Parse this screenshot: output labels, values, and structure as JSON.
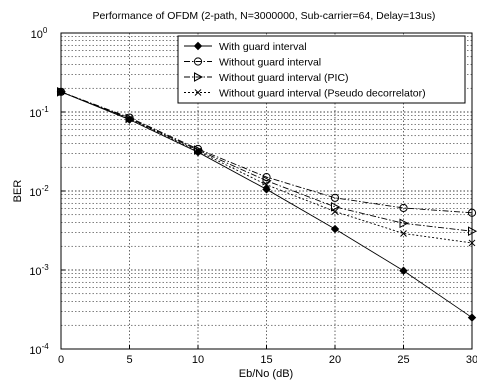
{
  "chart_data": {
    "type": "line",
    "title": "Performance of OFDM (2-path, N=3000000, Sub-carrier=64, Delay=13us)",
    "xlabel": "Eb/No (dB)",
    "ylabel": "BER",
    "x": [
      0,
      5,
      10,
      15,
      20,
      25,
      30
    ],
    "xlim": [
      0,
      30
    ],
    "ylim": [
      0.0001,
      1
    ],
    "yscale": "log",
    "grid": true,
    "legend_position": "top-right",
    "x_tick_labels": [
      "0",
      "5",
      "10",
      "15",
      "20",
      "25",
      "30"
    ],
    "y_tick_labels": [
      {
        "base": "10",
        "exp": "0"
      },
      {
        "base": "10",
        "exp": "-1"
      },
      {
        "base": "10",
        "exp": "-2"
      },
      {
        "base": "10",
        "exp": "-3"
      },
      {
        "base": "10",
        "exp": "-4"
      }
    ],
    "series": [
      {
        "name": "With guard interval",
        "marker": "diamond",
        "dash": "solid",
        "values": [
          0.18,
          0.08,
          0.031,
          0.0105,
          0.0033,
          0.00098,
          0.00025
        ]
      },
      {
        "name": "Without guard interval",
        "marker": "circle",
        "dash": "dashdot",
        "values": [
          0.18,
          0.085,
          0.034,
          0.015,
          0.0082,
          0.0061,
          0.0053
        ]
      },
      {
        "name": "Without guard interval (PIC)",
        "marker": "triangle-right",
        "dash": "dashdot",
        "values": [
          0.18,
          0.083,
          0.033,
          0.0135,
          0.0063,
          0.0039,
          0.0031
        ]
      },
      {
        "name": "Without guard interval (Pseudo decorrelator)",
        "marker": "x",
        "dash": "dotted",
        "values": [
          0.18,
          0.082,
          0.032,
          0.012,
          0.0055,
          0.0029,
          0.0022
        ]
      }
    ]
  }
}
